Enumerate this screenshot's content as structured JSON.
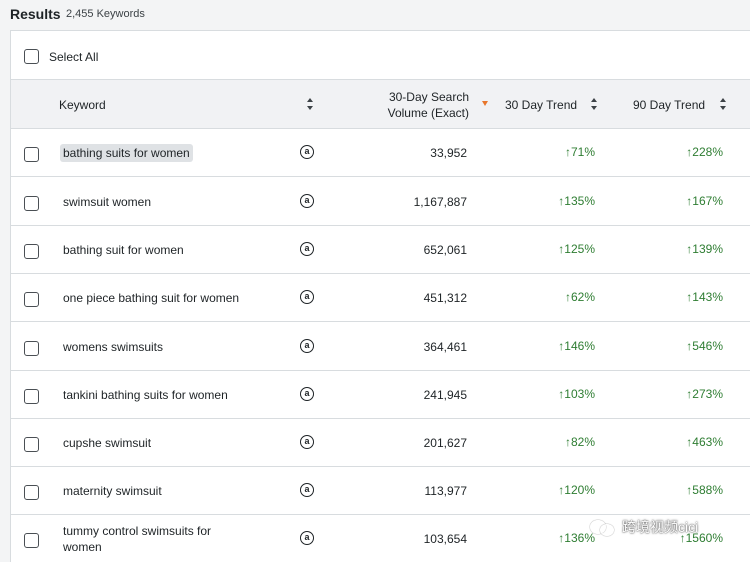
{
  "results": {
    "title": "Results",
    "count": "2,455 Keywords"
  },
  "select_all": {
    "label": "Select All"
  },
  "headers": {
    "keyword": "Keyword",
    "volume_line1": "30-Day Search",
    "volume_line2": "Volume (Exact)",
    "trend30": "30 Day Trend",
    "trend90": "90 Day Trend"
  },
  "amazon_glyph": "a",
  "trend_arrow": "↑",
  "rows": [
    {
      "keyword": "bathing suits for women",
      "volume": "33,952",
      "trend30": "71%",
      "trend90": "228%",
      "highlighted": true
    },
    {
      "keyword": "swimsuit women",
      "volume": "1,167,887",
      "trend30": "135%",
      "trend90": "167%"
    },
    {
      "keyword": "bathing suit for women",
      "volume": "652,061",
      "trend30": "125%",
      "trend90": "139%"
    },
    {
      "keyword": "one piece bathing suit for women",
      "volume": "451,312",
      "trend30": "62%",
      "trend90": "143%"
    },
    {
      "keyword": "womens swimsuits",
      "volume": "364,461",
      "trend30": "146%",
      "trend90": "546%"
    },
    {
      "keyword": "tankini bathing suits for women",
      "volume": "241,945",
      "trend30": "103%",
      "trend90": "273%"
    },
    {
      "keyword": "cupshe swimsuit",
      "volume": "201,627",
      "trend30": "82%",
      "trend90": "463%"
    },
    {
      "keyword": "maternity swimsuit",
      "volume": "113,977",
      "trend30": "120%",
      "trend90": "588%"
    },
    {
      "keyword": "tummy control swimsuits for women",
      "volume": "103,654",
      "trend30": "136%",
      "trend90": "1560%"
    }
  ],
  "watermark": {
    "text": "跨境视频cici"
  },
  "colors": {
    "trend_up": "#2e7d32",
    "sort_active": "#e8762b",
    "header_bg": "#f1f2f4",
    "highlight_bg": "#dfe2e5"
  }
}
